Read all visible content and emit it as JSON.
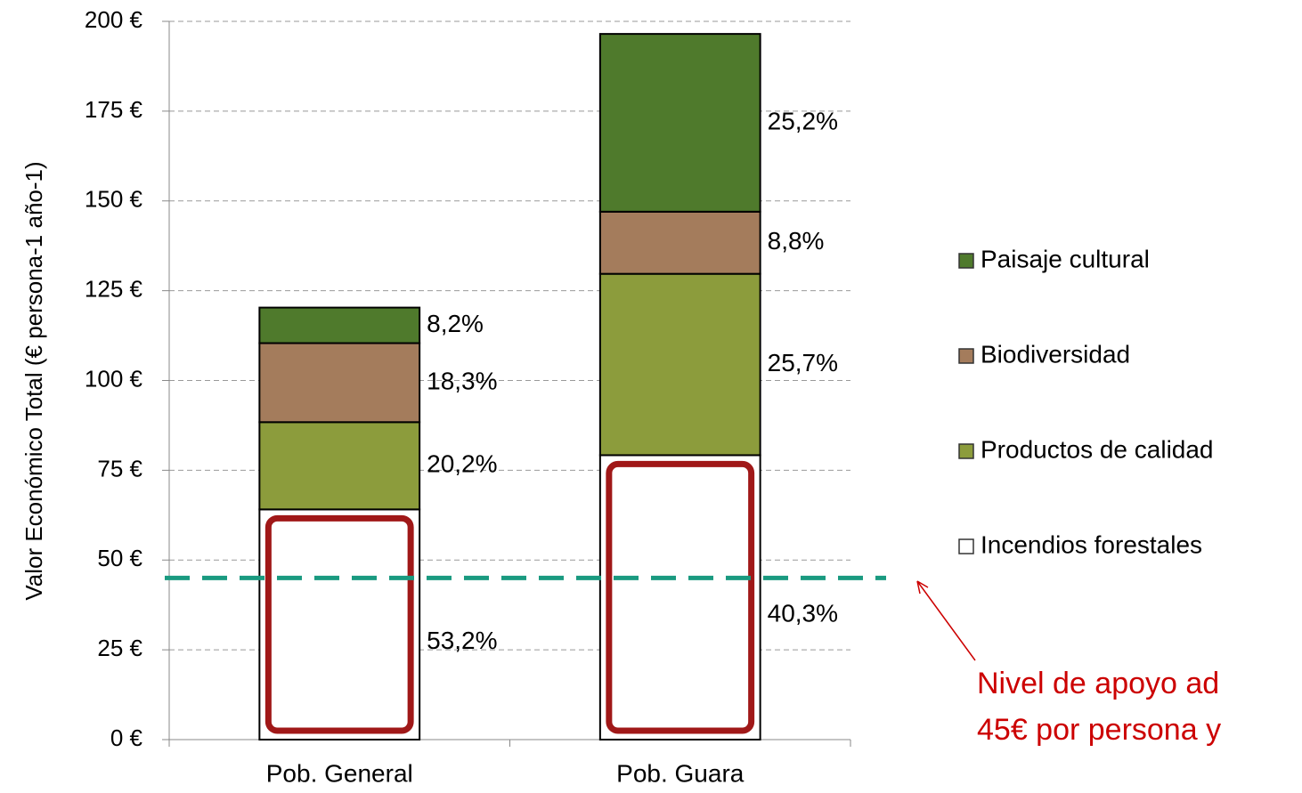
{
  "chart_data": {
    "type": "stacked_bar",
    "y_label": "Valor Económico Total (€ persona-1 año-1)",
    "categories": [
      "Pob. General",
      "Pob. Guara"
    ],
    "series": [
      {
        "name": "Incendios forestales",
        "color": "#ffffff",
        "values": [
          64.1,
          79.2
        ],
        "percent_labels": [
          "53,2%",
          "40,3%"
        ]
      },
      {
        "name": "Productos de calidad",
        "color": "#8c9c3c",
        "values": [
          24.3,
          50.5
        ],
        "percent_labels": [
          "20,2%",
          "25,7%"
        ]
      },
      {
        "name": "Biodiversidad",
        "color": "#a47c5c",
        "values": [
          22.0,
          17.3
        ],
        "percent_labels": [
          "18,3%",
          "8,8%"
        ]
      },
      {
        "name": "Paisaje cultural",
        "color": "#4f7a2c",
        "values": [
          9.9,
          49.5
        ],
        "percent_labels": [
          "8,2%",
          "25,2%"
        ]
      }
    ],
    "ylim": [
      0,
      200
    ],
    "yticks": [
      {
        "value": 0,
        "label": "0 €"
      },
      {
        "value": 25,
        "label": "25 €"
      },
      {
        "value": 50,
        "label": "50 €"
      },
      {
        "value": 75,
        "label": "75 €"
      },
      {
        "value": 100,
        "label": "100 €"
      },
      {
        "value": 125,
        "label": "125 €"
      },
      {
        "value": 150,
        "label": "150 €"
      },
      {
        "value": 175,
        "label": "175 €"
      },
      {
        "value": 200,
        "label": "200 €"
      }
    ],
    "grid": true,
    "reference_line": {
      "value": 45,
      "color": "#1a9a80",
      "annotation": [
        "Nivel de apoyo ad",
        "45€ por persona y"
      ],
      "annotation_color": "#cc0000"
    }
  }
}
